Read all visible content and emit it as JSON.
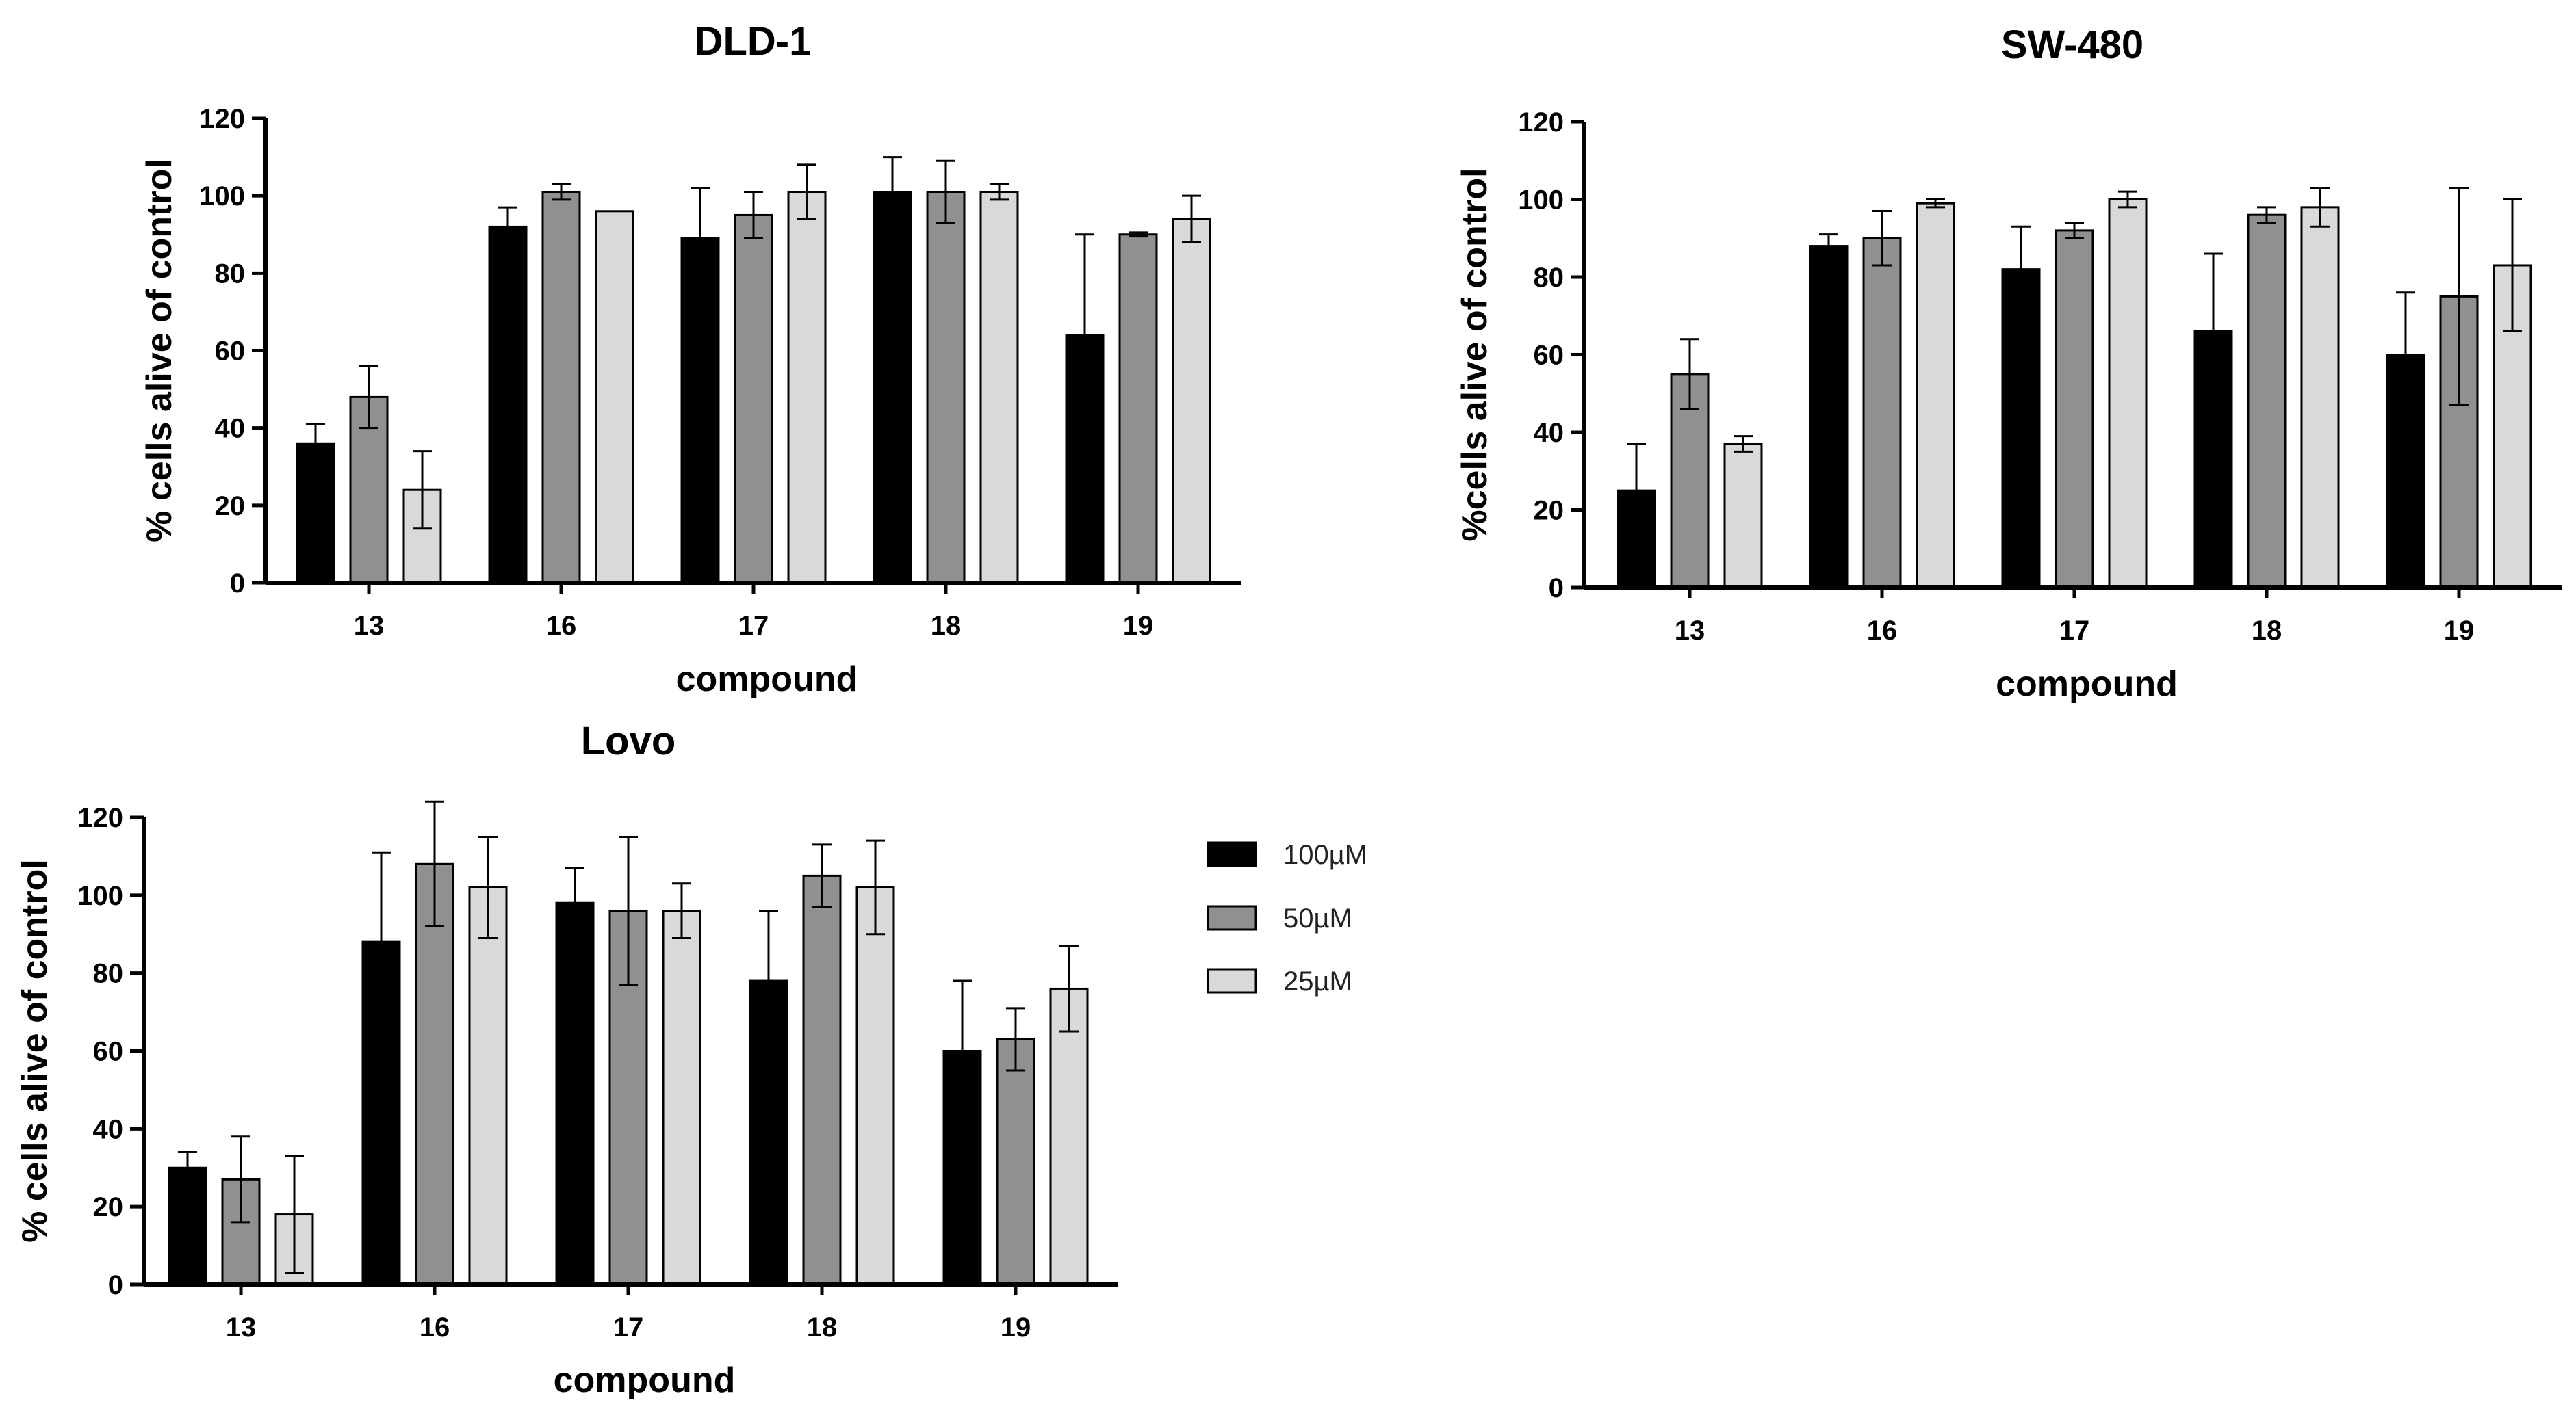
{
  "chart_data": [
    {
      "type": "bar",
      "title": "DLD-1",
      "xlabel": "compound",
      "ylabel": "% cells alive of control",
      "ylim": [
        0,
        120
      ],
      "yticks": [
        0,
        20,
        40,
        60,
        80,
        100,
        120
      ],
      "categories": [
        "13",
        "16",
        "17",
        "18",
        "19"
      ],
      "series": [
        {
          "name": "100µM",
          "values": [
            36,
            92,
            89,
            101,
            64
          ],
          "errors": [
            5,
            5,
            13,
            9,
            26
          ]
        },
        {
          "name": "50µM",
          "values": [
            48,
            101,
            95,
            101,
            90
          ],
          "errors": [
            8,
            2,
            6,
            8,
            0.5
          ]
        },
        {
          "name": "25µM",
          "values": [
            24,
            96,
            101,
            101,
            94
          ],
          "errors": [
            10,
            0,
            7,
            2,
            6
          ]
        }
      ]
    },
    {
      "type": "bar",
      "title": "SW-480",
      "xlabel": "compound",
      "ylabel": "%cells alive of control",
      "ylim": [
        0,
        120
      ],
      "yticks": [
        0,
        20,
        40,
        60,
        80,
        100,
        120
      ],
      "categories": [
        "13",
        "16",
        "17",
        "18",
        "19"
      ],
      "series": [
        {
          "name": "100µM",
          "values": [
            25,
            88,
            82,
            66,
            60
          ],
          "errors": [
            12,
            3,
            11,
            20,
            16
          ]
        },
        {
          "name": "50µM",
          "values": [
            55,
            90,
            92,
            96,
            75
          ],
          "errors": [
            9,
            7,
            2,
            2,
            28
          ]
        },
        {
          "name": "25µM",
          "values": [
            37,
            99,
            100,
            98,
            83
          ],
          "errors": [
            2,
            1,
            2,
            5,
            17
          ]
        }
      ]
    },
    {
      "type": "bar",
      "title": "Lovo",
      "xlabel": "compound",
      "ylabel": "% cells alive of control",
      "ylim": [
        0,
        120
      ],
      "yticks": [
        0,
        20,
        40,
        60,
        80,
        100,
        120
      ],
      "categories": [
        "13",
        "16",
        "17",
        "18",
        "19"
      ],
      "series": [
        {
          "name": "100µM",
          "values": [
            30,
            88,
            98,
            78,
            60
          ],
          "errors": [
            4,
            23,
            9,
            18,
            18
          ]
        },
        {
          "name": "50µM",
          "values": [
            27,
            108,
            96,
            105,
            63
          ],
          "errors": [
            11,
            16,
            19,
            8,
            8
          ]
        },
        {
          "name": "25µM",
          "values": [
            18,
            102,
            96,
            102,
            76
          ],
          "errors": [
            15,
            13,
            7,
            12,
            11
          ]
        }
      ]
    }
  ],
  "legend": {
    "items": [
      {
        "label": "100µM",
        "color": "#000000"
      },
      {
        "label": "50µM",
        "color": "#909090"
      },
      {
        "label": "25µM",
        "color": "#d9d9d9"
      }
    ]
  },
  "series_colors": [
    "#000000",
    "#909090",
    "#d9d9d9"
  ]
}
